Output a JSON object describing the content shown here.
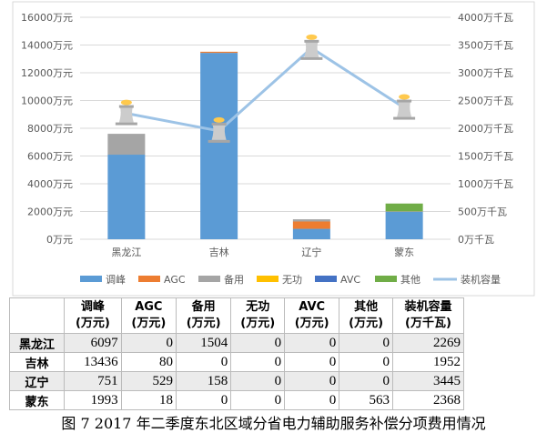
{
  "chart_data": {
    "type": "bar",
    "stacked": true,
    "categories": [
      "黑龙江",
      "吉林",
      "辽宁",
      "蒙东"
    ],
    "series": [
      {
        "name": "调峰",
        "color": "#5b9bd5",
        "values": [
          6097,
          13436,
          751,
          1993
        ]
      },
      {
        "name": "AGC",
        "color": "#ed7d31",
        "values": [
          0,
          80,
          529,
          18
        ]
      },
      {
        "name": "备用",
        "color": "#a5a5a5",
        "values": [
          1504,
          0,
          158,
          0
        ]
      },
      {
        "name": "无功",
        "color": "#ffc000",
        "values": [
          0,
          0,
          0,
          0
        ]
      },
      {
        "name": "AVC",
        "color": "#4472c4",
        "values": [
          0,
          0,
          0,
          0
        ]
      },
      {
        "name": "其他",
        "color": "#70ad47",
        "values": [
          0,
          0,
          0,
          563
        ]
      }
    ],
    "line_series": {
      "name": "装机容量",
      "color": "#9dc3e6",
      "axis": "right",
      "marker": "cooling-tower-icon",
      "values": [
        2269,
        1952,
        3445,
        2368
      ]
    },
    "left_axis": {
      "ylim": [
        0,
        16000
      ],
      "ticks": [
        "0万元",
        "2000万元",
        "4000万元",
        "6000万元",
        "8000万元",
        "10000万元",
        "12000万元",
        "14000万元",
        "16000万元"
      ]
    },
    "right_axis": {
      "ylim": [
        0,
        4000
      ],
      "ticks": [
        "0万千瓦",
        "500万千瓦",
        "1000万千瓦",
        "1500万千瓦",
        "2000万千瓦",
        "2500万千瓦",
        "3000万千瓦",
        "3500万千瓦",
        "4000万千瓦"
      ]
    },
    "grid": true,
    "legend": "bottom"
  },
  "table": {
    "headers": [
      [
        "",
        ""
      ],
      [
        "调峰",
        "(万元)"
      ],
      [
        "AGC",
        "(万元)"
      ],
      [
        "备用",
        "(万元)"
      ],
      [
        "无功",
        "(万元)"
      ],
      [
        "AVC",
        "(万元)"
      ],
      [
        "其他",
        "(万元)"
      ],
      [
        "装机容量",
        "(万千瓦)"
      ]
    ],
    "rows": [
      [
        "黑龙江",
        "6097",
        "0",
        "1504",
        "0",
        "0",
        "0",
        "2269"
      ],
      [
        "吉林",
        "13436",
        "80",
        "0",
        "0",
        "0",
        "0",
        "1952"
      ],
      [
        "辽宁",
        "751",
        "529",
        "158",
        "0",
        "0",
        "0",
        "3445"
      ],
      [
        "蒙东",
        "1993",
        "18",
        "0",
        "0",
        "0",
        "563",
        "2368"
      ]
    ]
  },
  "caption": "图 7   2017 年二季度东北区域分省电力辅助服务补偿分项费用情况"
}
